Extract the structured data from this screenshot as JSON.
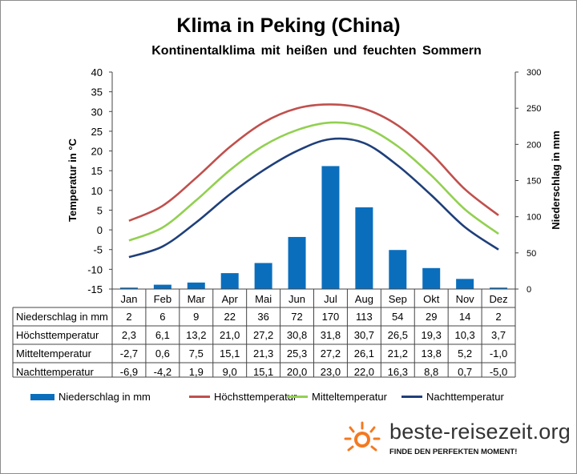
{
  "title": "Klima in Peking (China)",
  "subtitle": "Kontinentalklima mit heißen und feuchten Sommern",
  "chart_data": {
    "type": "bar+line",
    "categories": [
      "Jan",
      "Feb",
      "Mar",
      "Apr",
      "Mai",
      "Jun",
      "Jul",
      "Aug",
      "Sep",
      "Okt",
      "Nov",
      "Dez"
    ],
    "y_left": {
      "label": "Temperatur in °C",
      "range": [
        -15,
        40
      ],
      "ticks": [
        40,
        35,
        30,
        25,
        20,
        15,
        10,
        5,
        0,
        -5,
        -10,
        -15
      ]
    },
    "y_right": {
      "label": "Niederschlag in mm",
      "range": [
        0,
        300
      ],
      "ticks": [
        300,
        250,
        200,
        150,
        100,
        50,
        0
      ]
    },
    "grid": false,
    "legend_position": "bottom",
    "series": [
      {
        "name": "Niederschlag in mm",
        "type": "bar",
        "axis": "right",
        "color": "#0a6ebd",
        "values": [
          2,
          6,
          9,
          22,
          36,
          72,
          170,
          113,
          54,
          29,
          14,
          2
        ],
        "labels": [
          "2",
          "6",
          "9",
          "22",
          "36",
          "72",
          "170",
          "113",
          "54",
          "29",
          "14",
          "2"
        ]
      },
      {
        "name": "Höchsttemperatur",
        "type": "line",
        "axis": "left",
        "color": "#c0504d",
        "values": [
          2.3,
          6.1,
          13.2,
          21.0,
          27.2,
          30.8,
          31.8,
          30.7,
          26.5,
          19.3,
          10.3,
          3.7
        ],
        "labels": [
          "2,3",
          "6,1",
          "13,2",
          "21,0",
          "27,2",
          "30,8",
          "31,8",
          "30,7",
          "26,5",
          "19,3",
          "10,3",
          "3,7"
        ]
      },
      {
        "name": "Mitteltemperatur",
        "type": "line",
        "axis": "left",
        "color": "#92d050",
        "values": [
          -2.7,
          0.6,
          7.5,
          15.1,
          21.3,
          25.3,
          27.2,
          26.1,
          21.2,
          13.8,
          5.2,
          -1.0
        ],
        "labels": [
          "-2,7",
          "0,6",
          "7,5",
          "15,1",
          "21,3",
          "25,3",
          "27,2",
          "26,1",
          "21,2",
          "13,8",
          "5,2",
          "-1,0"
        ]
      },
      {
        "name": "Nachttemperatur",
        "type": "line",
        "axis": "left",
        "color": "#1f3f7a",
        "values": [
          -6.9,
          -4.2,
          1.9,
          9.0,
          15.1,
          20.0,
          23.0,
          22.0,
          16.3,
          8.8,
          0.7,
          -5.0
        ],
        "labels": [
          "-6,9",
          "-4,2",
          "1,9",
          "9,0",
          "15,1",
          "20,0",
          "23,0",
          "22,0",
          "16,3",
          "8,8",
          "0,7",
          "-5,0"
        ]
      }
    ]
  },
  "logo": {
    "name": "beste-reisezeit.org",
    "tagline": "FINDE DEN PERFEKTEN MOMENT!",
    "icon": "sun-icon",
    "accent": "#f47920"
  }
}
